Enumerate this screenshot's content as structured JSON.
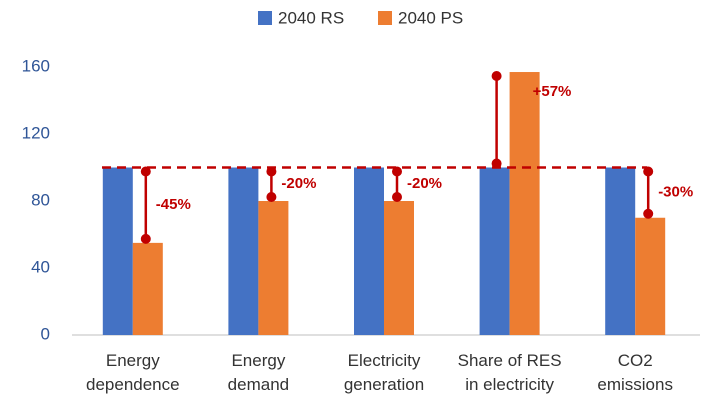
{
  "chart_data": {
    "type": "bar",
    "categories": [
      "Energy\ndependence",
      "Energy\ndemand",
      "Electricity\ngeneration",
      "Share of RES\nin electricity",
      "CO2\nemissions"
    ],
    "series": [
      {
        "name": "2040 RS",
        "color": "#4472c4",
        "values": [
          100,
          100,
          100,
          100,
          100
        ]
      },
      {
        "name": "2040 PS",
        "color": "#ed7d31",
        "values": [
          55,
          80,
          80,
          157,
          70
        ]
      }
    ],
    "annotations": [
      "-45%",
      "-20%",
      "-20%",
      "+57%",
      "-30%"
    ],
    "annotation_color": "#c00000",
    "reference_line": 100,
    "ylim": [
      0,
      160
    ],
    "yticks": [
      0,
      40,
      80,
      120,
      160
    ],
    "grid": false,
    "legend": "top"
  }
}
